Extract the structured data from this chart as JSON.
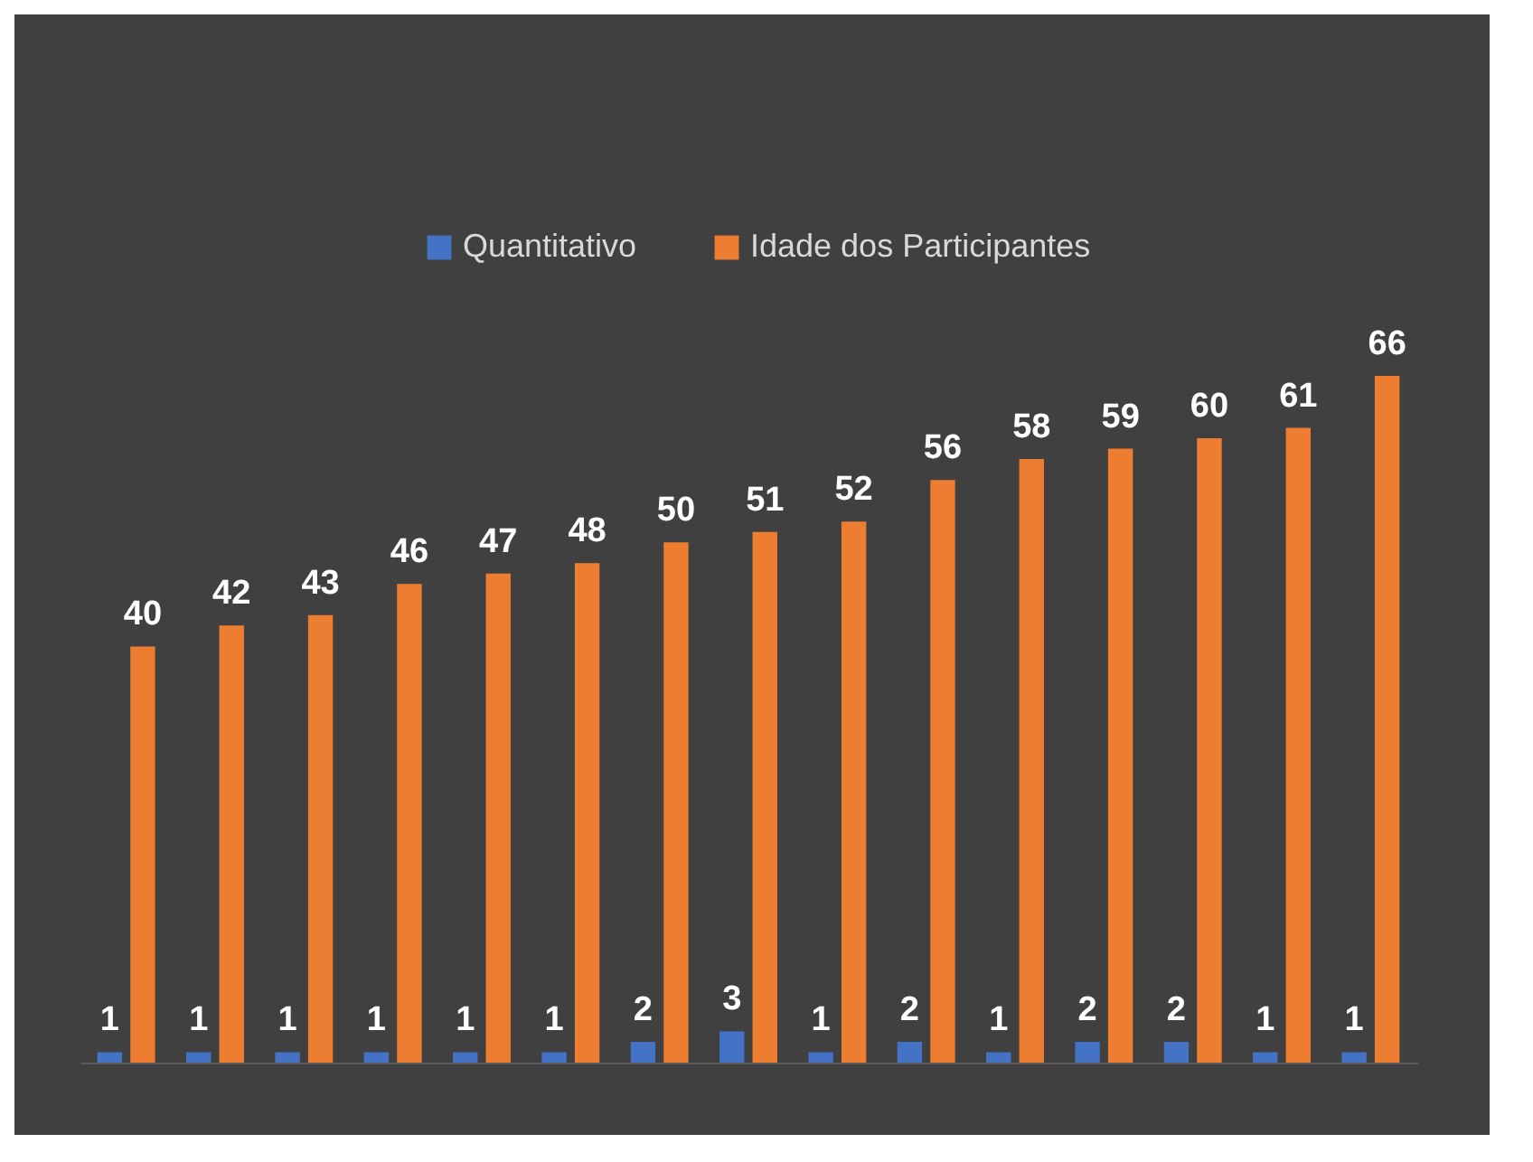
{
  "chart_data": {
    "type": "bar",
    "categories": [
      null,
      null,
      null,
      null,
      null,
      null,
      null,
      null,
      null,
      null,
      null,
      null,
      null,
      null,
      null
    ],
    "series": [
      {
        "name": "Quantitativo",
        "color": "#4472c4",
        "values": [
          1,
          1,
          1,
          1,
          1,
          1,
          2,
          3,
          1,
          2,
          1,
          2,
          2,
          1,
          1
        ]
      },
      {
        "name": "Idade dos Participantes",
        "color": "#ed7d31",
        "values": [
          40,
          42,
          43,
          46,
          47,
          48,
          50,
          51,
          52,
          56,
          58,
          59,
          60,
          61,
          66
        ]
      }
    ],
    "data_labels": true,
    "legend": "top"
  }
}
